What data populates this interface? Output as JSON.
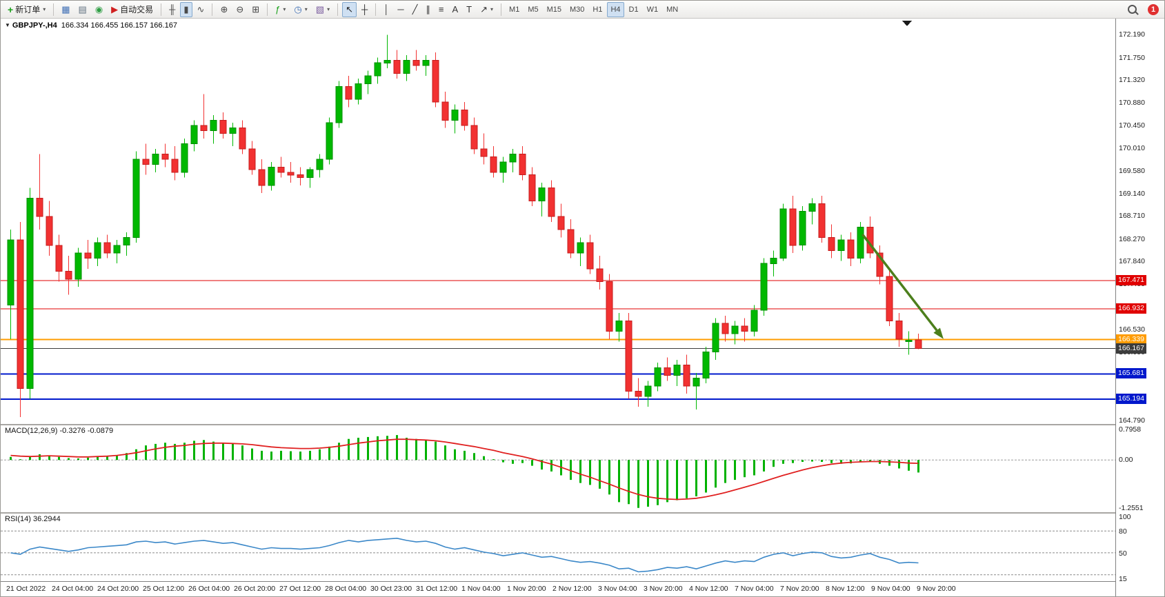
{
  "toolbar": {
    "groups": [
      {
        "items": [
          {
            "name": "new-order",
            "icon": "new-order-icon",
            "glyph": "+",
            "glyph_color": "#18a018",
            "label": "新订单",
            "dropdown": true
          }
        ]
      },
      {
        "items": [
          {
            "name": "chart-window",
            "icon": "chart-window-icon",
            "glyph": "▦",
            "glyph_color": "#3f6fb5"
          },
          {
            "name": "data-window",
            "icon": "data-window-icon",
            "glyph": "▤",
            "glyph_color": "#60707f"
          },
          {
            "name": "market-watch",
            "icon": "market-watch-icon",
            "glyph": "◉",
            "glyph_color": "#2f9e44"
          },
          {
            "name": "autotrade",
            "icon": "autotrade-icon",
            "glyph": "▶",
            "glyph_color": "#d02020",
            "label": "自动交易"
          }
        ]
      },
      {
        "items": [
          {
            "name": "bar-chart",
            "icon": "bar-chart-icon",
            "glyph": "╫",
            "glyph_color": "#4a4a4a"
          },
          {
            "name": "candle-chart",
            "icon": "candlestick-icon",
            "glyph": "▮",
            "glyph_color": "#4a4a4a",
            "active": true
          },
          {
            "name": "line-chart",
            "icon": "line-chart-icon",
            "glyph": "∿",
            "glyph_color": "#4a4a4a"
          }
        ]
      },
      {
        "items": [
          {
            "name": "zoom-in",
            "icon": "zoom-in-icon",
            "glyph": "⊕",
            "glyph_color": "#444"
          },
          {
            "name": "zoom-out",
            "icon": "zoom-out-icon",
            "glyph": "⊖",
            "glyph_color": "#444"
          },
          {
            "name": "tile-windows",
            "icon": "tile-windows-icon",
            "glyph": "⊞",
            "glyph_color": "#444"
          }
        ]
      },
      {
        "items": [
          {
            "name": "indicators",
            "icon": "indicators-icon",
            "glyph": "ƒ",
            "glyph_color": "#18a018",
            "dropdown": true
          },
          {
            "name": "periods",
            "icon": "clock-icon",
            "glyph": "◷",
            "glyph_color": "#3f6fb5",
            "dropdown": true
          },
          {
            "name": "templates",
            "icon": "template-icon",
            "glyph": "▧",
            "glyph_color": "#7a5c9e",
            "dropdown": true
          }
        ]
      },
      {
        "items": [
          {
            "name": "cursor",
            "icon": "cursor-icon",
            "glyph": "↖",
            "glyph_color": "#222",
            "active": true
          },
          {
            "name": "crosshair",
            "icon": "crosshair-icon",
            "glyph": "┼",
            "glyph_color": "#222"
          }
        ]
      },
      {
        "items": [
          {
            "name": "vertical-line",
            "icon": "vertical-line-icon",
            "glyph": "│",
            "glyph_color": "#333"
          },
          {
            "name": "horizontal-line",
            "icon": "horizontal-line-icon",
            "glyph": "─",
            "glyph_color": "#333"
          },
          {
            "name": "trendline",
            "icon": "trendline-icon",
            "glyph": "╱",
            "glyph_color": "#333"
          },
          {
            "name": "channel",
            "icon": "channel-icon",
            "glyph": "∥",
            "glyph_color": "#333"
          },
          {
            "name": "fibonacci",
            "icon": "fibonacci-icon",
            "glyph": "≡",
            "glyph_color": "#333"
          },
          {
            "name": "text",
            "icon": "text-icon",
            "glyph": "A",
            "glyph_color": "#333"
          },
          {
            "name": "text-label",
            "icon": "label-icon",
            "glyph": "T",
            "glyph_color": "#333"
          },
          {
            "name": "arrow-objects",
            "icon": "arrow-objects-icon",
            "glyph": "↗",
            "glyph_color": "#333",
            "dropdown": true
          }
        ]
      },
      {
        "items": [
          {
            "name": "tf-m1",
            "label": "M1"
          },
          {
            "name": "tf-m5",
            "label": "M5"
          },
          {
            "name": "tf-m15",
            "label": "M15"
          },
          {
            "name": "tf-m30",
            "label": "M30"
          },
          {
            "name": "tf-h1",
            "label": "H1"
          },
          {
            "name": "tf-h4",
            "label": "H4",
            "active": true
          },
          {
            "name": "tf-d1",
            "label": "D1"
          },
          {
            "name": "tf-w1",
            "label": "W1"
          },
          {
            "name": "tf-mn",
            "label": "MN"
          }
        ]
      }
    ],
    "right": {
      "badge": "1"
    }
  },
  "chart": {
    "title": {
      "collapse_icon": "▼",
      "symbol": "GBPJPY-,H4",
      "ohlc": "166.334 166.455 166.157 166.167"
    }
  },
  "chart_data": {
    "type": "candlestick",
    "symbol": "GBPJPY-",
    "timeframe": "H4",
    "current_ohlc": {
      "open": 166.334,
      "high": 166.455,
      "low": 166.157,
      "close": 166.167
    },
    "price_axis": {
      "max": 172.5,
      "min": 164.72,
      "ticks": [
        "172.190",
        "171.750",
        "171.320",
        "170.880",
        "170.450",
        "170.010",
        "169.580",
        "169.140",
        "168.710",
        "168.270",
        "167.840",
        "167.400",
        "166.970",
        "166.530",
        "166.090",
        "165.650",
        "165.220",
        "164.790"
      ]
    },
    "x_labels": [
      "21 Oct 2022",
      "24 Oct 04:00",
      "24 Oct 20:00",
      "25 Oct 12:00",
      "26 Oct 04:00",
      "26 Oct 20:00",
      "27 Oct 12:00",
      "28 Oct 04:00",
      "30 Oct 23:00",
      "31 Oct 12:00",
      "1 Nov 04:00",
      "1 Nov 20:00",
      "2 Nov 12:00",
      "3 Nov 04:00",
      "3 Nov 20:00",
      "4 Nov 12:00",
      "7 Nov 04:00",
      "7 Nov 20:00",
      "8 Nov 12:00",
      "9 Nov 04:00",
      "9 Nov 20:00"
    ],
    "colors": {
      "bull": "#00b800",
      "bull_border": "#008f00",
      "bear": "#f23131",
      "bear_border": "#c41d1d",
      "background": "#ffffff"
    },
    "candles": [
      [
        167.0,
        168.45,
        166.35,
        168.25
      ],
      [
        168.25,
        168.6,
        164.85,
        165.4
      ],
      [
        165.4,
        169.25,
        165.2,
        169.05
      ],
      [
        169.05,
        169.9,
        168.45,
        168.7
      ],
      [
        168.7,
        169.0,
        167.95,
        168.15
      ],
      [
        168.15,
        168.35,
        167.45,
        167.65
      ],
      [
        167.65,
        167.95,
        167.2,
        167.5
      ],
      [
        167.5,
        168.1,
        167.35,
        168.0
      ],
      [
        168.0,
        168.25,
        167.7,
        167.9
      ],
      [
        167.9,
        168.3,
        167.75,
        168.2
      ],
      [
        168.2,
        168.35,
        167.9,
        168.0
      ],
      [
        168.0,
        168.25,
        167.8,
        168.15
      ],
      [
        168.15,
        168.4,
        167.95,
        168.3
      ],
      [
        168.3,
        169.95,
        168.2,
        169.8
      ],
      [
        169.8,
        170.1,
        169.5,
        169.7
      ],
      [
        169.7,
        170.0,
        169.55,
        169.9
      ],
      [
        169.9,
        170.1,
        169.65,
        169.8
      ],
      [
        169.8,
        170.05,
        169.4,
        169.55
      ],
      [
        169.55,
        170.2,
        169.45,
        170.1
      ],
      [
        170.1,
        170.55,
        169.95,
        170.45
      ],
      [
        170.45,
        171.05,
        170.2,
        170.35
      ],
      [
        170.35,
        170.65,
        170.1,
        170.55
      ],
      [
        170.55,
        170.7,
        170.2,
        170.3
      ],
      [
        170.3,
        170.5,
        170.05,
        170.4
      ],
      [
        170.4,
        170.55,
        169.9,
        170.0
      ],
      [
        170.0,
        170.15,
        169.5,
        169.6
      ],
      [
        169.6,
        169.8,
        169.15,
        169.3
      ],
      [
        169.3,
        169.75,
        169.2,
        169.65
      ],
      [
        169.65,
        169.85,
        169.45,
        169.55
      ],
      [
        169.55,
        169.75,
        169.35,
        169.5
      ],
      [
        169.5,
        169.65,
        169.3,
        169.45
      ],
      [
        169.45,
        169.65,
        169.25,
        169.6
      ],
      [
        169.6,
        169.9,
        169.45,
        169.8
      ],
      [
        169.8,
        170.6,
        169.7,
        170.5
      ],
      [
        170.5,
        171.3,
        170.4,
        171.2
      ],
      [
        171.2,
        171.4,
        170.8,
        170.95
      ],
      [
        170.95,
        171.35,
        170.85,
        171.25
      ],
      [
        171.25,
        171.5,
        171.05,
        171.4
      ],
      [
        171.4,
        171.75,
        171.25,
        171.65
      ],
      [
        171.65,
        172.19,
        171.55,
        171.7
      ],
      [
        171.7,
        171.9,
        171.35,
        171.45
      ],
      [
        171.45,
        171.8,
        171.3,
        171.7
      ],
      [
        171.7,
        171.9,
        171.5,
        171.6
      ],
      [
        171.6,
        171.8,
        171.4,
        171.7
      ],
      [
        171.7,
        171.85,
        170.8,
        170.9
      ],
      [
        170.9,
        171.1,
        170.4,
        170.55
      ],
      [
        170.55,
        170.85,
        170.3,
        170.75
      ],
      [
        170.75,
        170.9,
        170.35,
        170.45
      ],
      [
        170.45,
        170.6,
        169.9,
        170.0
      ],
      [
        170.0,
        170.3,
        169.7,
        169.85
      ],
      [
        169.85,
        170.05,
        169.45,
        169.55
      ],
      [
        169.55,
        169.85,
        169.35,
        169.75
      ],
      [
        169.75,
        170.0,
        169.55,
        169.9
      ],
      [
        169.9,
        170.05,
        169.4,
        169.5
      ],
      [
        169.5,
        169.65,
        168.9,
        169.0
      ],
      [
        169.0,
        169.35,
        168.7,
        169.25
      ],
      [
        169.25,
        169.4,
        168.6,
        168.7
      ],
      [
        168.7,
        168.95,
        168.3,
        168.45
      ],
      [
        168.45,
        168.65,
        167.9,
        168.0
      ],
      [
        168.0,
        168.3,
        167.75,
        168.2
      ],
      [
        168.2,
        168.35,
        167.6,
        167.7
      ],
      [
        167.7,
        167.95,
        167.3,
        167.45
      ],
      [
        167.45,
        167.6,
        166.35,
        166.5
      ],
      [
        166.5,
        166.85,
        166.3,
        166.7
      ],
      [
        166.7,
        166.85,
        165.2,
        165.35
      ],
      [
        165.35,
        165.6,
        165.05,
        165.25
      ],
      [
        165.25,
        165.55,
        165.05,
        165.45
      ],
      [
        165.45,
        165.9,
        165.35,
        165.8
      ],
      [
        165.8,
        166.0,
        165.55,
        165.65
      ],
      [
        165.65,
        165.95,
        165.45,
        165.85
      ],
      [
        165.85,
        166.05,
        165.3,
        165.45
      ],
      [
        165.45,
        165.7,
        165.0,
        165.6
      ],
      [
        165.6,
        166.2,
        165.5,
        166.1
      ],
      [
        166.1,
        166.75,
        165.95,
        166.65
      ],
      [
        166.65,
        166.8,
        166.3,
        166.45
      ],
      [
        166.45,
        166.7,
        166.25,
        166.6
      ],
      [
        166.6,
        166.75,
        166.3,
        166.5
      ],
      [
        166.5,
        167.0,
        166.4,
        166.9
      ],
      [
        166.9,
        167.9,
        166.8,
        167.8
      ],
      [
        167.8,
        168.05,
        167.55,
        167.9
      ],
      [
        167.9,
        168.95,
        167.85,
        168.85
      ],
      [
        168.85,
        169.1,
        168.0,
        168.15
      ],
      [
        168.15,
        168.9,
        168.05,
        168.8
      ],
      [
        168.8,
        169.05,
        168.55,
        168.95
      ],
      [
        168.95,
        169.1,
        168.2,
        168.3
      ],
      [
        168.3,
        168.55,
        167.9,
        168.05
      ],
      [
        168.05,
        168.35,
        167.85,
        168.25
      ],
      [
        168.25,
        168.4,
        167.75,
        167.9
      ],
      [
        167.9,
        168.6,
        167.8,
        168.5
      ],
      [
        168.5,
        168.7,
        167.9,
        168.0
      ],
      [
        168.0,
        168.15,
        167.4,
        167.55
      ],
      [
        167.55,
        167.7,
        166.6,
        166.7
      ],
      [
        166.7,
        166.85,
        166.2,
        166.35
      ],
      [
        166.3,
        166.5,
        166.05,
        166.33
      ],
      [
        166.334,
        166.455,
        166.157,
        166.167
      ]
    ],
    "levels": [
      {
        "price": 167.471,
        "label": "167.471",
        "color": "#e00000",
        "width": 1
      },
      {
        "price": 166.932,
        "label": "166.932",
        "color": "#e00000",
        "width": 1
      },
      {
        "price": 166.339,
        "label": "166.339",
        "color": "#ff9c00",
        "width": 2
      },
      {
        "price": 166.167,
        "label": "166.167",
        "color": "#3c3c3c",
        "width": 1
      },
      {
        "price": 165.681,
        "label": "165.681",
        "color": "#0018cc",
        "width": 2
      },
      {
        "price": 165.194,
        "label": "165.194",
        "color": "#0018cc",
        "width": 2
      }
    ],
    "arrow": {
      "from_index": 88.2,
      "from_price": 168.36,
      "to_index": 96.6,
      "to_price": 166.35,
      "color": "#4c7f1c"
    },
    "macd": {
      "label": "MACD(12,26,9)",
      "values_text": "-0.3276 -0.0879",
      "scale": {
        "max": 0.7958,
        "min": -1.2551
      },
      "axis_ticks": [
        "0.7958",
        "0.00",
        "-1.2551"
      ],
      "colors": {
        "histogram": "#00b200",
        "signal": "#e02020"
      },
      "histogram": [
        0.08,
        0.02,
        0.1,
        0.15,
        0.12,
        0.08,
        0.05,
        0.04,
        0.06,
        0.09,
        0.11,
        0.13,
        0.18,
        0.28,
        0.38,
        0.42,
        0.45,
        0.42,
        0.45,
        0.5,
        0.52,
        0.48,
        0.44,
        0.42,
        0.38,
        0.3,
        0.24,
        0.22,
        0.24,
        0.23,
        0.22,
        0.24,
        0.28,
        0.35,
        0.45,
        0.55,
        0.58,
        0.6,
        0.62,
        0.63,
        0.65,
        0.58,
        0.55,
        0.52,
        0.48,
        0.38,
        0.28,
        0.24,
        0.18,
        0.1,
        0.02,
        -0.06,
        -0.1,
        -0.08,
        -0.15,
        -0.25,
        -0.3,
        -0.4,
        -0.52,
        -0.6,
        -0.65,
        -0.75,
        -0.9,
        -1.1,
        -1.15,
        -1.25,
        -1.22,
        -1.18,
        -1.1,
        -1.05,
        -1.0,
        -0.95,
        -0.85,
        -0.72,
        -0.6,
        -0.52,
        -0.45,
        -0.4,
        -0.3,
        -0.18,
        -0.1,
        -0.08,
        -0.05,
        -0.04,
        -0.05,
        -0.08,
        -0.1,
        -0.09,
        -0.06,
        -0.05,
        -0.1,
        -0.15,
        -0.22,
        -0.28,
        -0.3276
      ],
      "signal": [
        0.12,
        0.1,
        0.09,
        0.1,
        0.11,
        0.1,
        0.09,
        0.08,
        0.08,
        0.09,
        0.1,
        0.12,
        0.15,
        0.19,
        0.24,
        0.29,
        0.33,
        0.36,
        0.38,
        0.41,
        0.43,
        0.44,
        0.44,
        0.43,
        0.42,
        0.4,
        0.37,
        0.34,
        0.32,
        0.31,
        0.3,
        0.3,
        0.31,
        0.33,
        0.36,
        0.4,
        0.44,
        0.47,
        0.5,
        0.52,
        0.54,
        0.54,
        0.53,
        0.52,
        0.5,
        0.47,
        0.43,
        0.39,
        0.35,
        0.3,
        0.25,
        0.19,
        0.14,
        0.09,
        0.03,
        -0.04,
        -0.11,
        -0.19,
        -0.28,
        -0.37,
        -0.45,
        -0.54,
        -0.63,
        -0.73,
        -0.82,
        -0.9,
        -0.96,
        -1.0,
        -1.02,
        -1.03,
        -1.02,
        -1.0,
        -0.96,
        -0.91,
        -0.85,
        -0.78,
        -0.71,
        -0.64,
        -0.56,
        -0.48,
        -0.4,
        -0.33,
        -0.26,
        -0.2,
        -0.15,
        -0.11,
        -0.08,
        -0.06,
        -0.05,
        -0.04,
        -0.04,
        -0.05,
        -0.06,
        -0.08,
        -0.0879
      ]
    },
    "rsi": {
      "label": "RSI(14)",
      "value_text": "36.2944",
      "scale": {
        "max": 100,
        "min": 15
      },
      "axis_ticks": [
        "100",
        "80",
        "50",
        "15"
      ],
      "levels": [
        80,
        50,
        20
      ],
      "color": "#3a87c8",
      "series": [
        50,
        48,
        55,
        58,
        56,
        54,
        52,
        54,
        57,
        58,
        59,
        60,
        61,
        65,
        66,
        64,
        65,
        62,
        64,
        66,
        67,
        65,
        63,
        64,
        61,
        58,
        55,
        57,
        56,
        56,
        55,
        56,
        57,
        60,
        64,
        67,
        65,
        67,
        68,
        69,
        70,
        67,
        65,
        66,
        63,
        58,
        55,
        57,
        54,
        51,
        49,
        46,
        48,
        50,
        47,
        44,
        45,
        42,
        39,
        37,
        38,
        36,
        33,
        28,
        29,
        24,
        25,
        27,
        30,
        29,
        31,
        28,
        32,
        36,
        39,
        37,
        39,
        38,
        44,
        48,
        50,
        46,
        49,
        51,
        50,
        45,
        43,
        44,
        47,
        49,
        44,
        41,
        36,
        37,
        36.29
      ]
    }
  }
}
